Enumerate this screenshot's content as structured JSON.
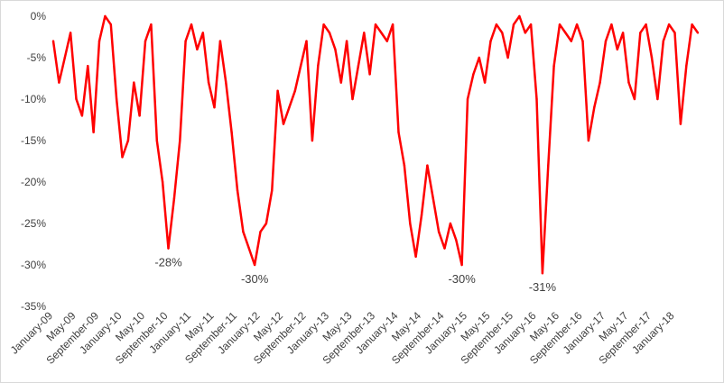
{
  "chart_data": {
    "type": "line",
    "title": "",
    "xlabel": "",
    "ylabel": "",
    "ylim": [
      -35,
      0
    ],
    "y_ticks": [
      "0%",
      "-5%",
      "-10%",
      "-15%",
      "-20%",
      "-25%",
      "-30%",
      "-35%"
    ],
    "x_tick_labels": [
      "January-09",
      "May-09",
      "September-09",
      "January-10",
      "May-10",
      "September-10",
      "January-11",
      "May-11",
      "September-11",
      "January-12",
      "May-12",
      "September-12",
      "January-13",
      "May-13",
      "September-13",
      "January-14",
      "May-14",
      "September-14",
      "January-15",
      "May-15",
      "September-15",
      "January-16",
      "May-16",
      "September-16",
      "January-17",
      "May-17",
      "September-17",
      "January-18"
    ],
    "grid": false,
    "legend": "none",
    "line_color": "#ff0000",
    "series": [
      {
        "x": [
          "2009-01",
          "2009-02",
          "2009-03",
          "2009-04",
          "2009-05",
          "2009-06",
          "2009-07",
          "2009-08",
          "2009-09",
          "2009-10",
          "2009-11",
          "2009-12",
          "2010-01",
          "2010-02",
          "2010-03",
          "2010-04",
          "2010-05",
          "2010-06",
          "2010-07",
          "2010-08",
          "2010-09",
          "2010-10",
          "2010-11",
          "2010-12",
          "2011-01",
          "2011-02",
          "2011-03",
          "2011-04",
          "2011-05",
          "2011-06",
          "2011-07",
          "2011-08",
          "2011-09",
          "2011-10",
          "2011-11",
          "2011-12",
          "2012-01",
          "2012-02",
          "2012-03",
          "2012-04",
          "2012-05",
          "2012-06",
          "2012-07",
          "2012-08",
          "2012-09",
          "2012-10",
          "2012-11",
          "2012-12",
          "2013-01",
          "2013-02",
          "2013-03",
          "2013-04",
          "2013-05",
          "2013-06",
          "2013-07",
          "2013-08",
          "2013-09",
          "2013-10",
          "2013-11",
          "2013-12",
          "2014-01",
          "2014-02",
          "2014-03",
          "2014-04",
          "2014-05",
          "2014-06",
          "2014-07",
          "2014-08",
          "2014-09",
          "2014-10",
          "2014-11",
          "2014-12",
          "2015-01",
          "2015-02",
          "2015-03",
          "2015-04",
          "2015-05",
          "2015-06",
          "2015-07",
          "2015-08",
          "2015-09",
          "2015-10",
          "2015-11",
          "2015-12",
          "2016-01",
          "2016-02",
          "2016-03",
          "2016-04",
          "2016-05",
          "2016-06",
          "2016-07",
          "2016-08",
          "2016-09",
          "2016-10",
          "2016-11",
          "2016-12",
          "2017-01",
          "2017-02",
          "2017-03",
          "2017-04",
          "2017-05",
          "2017-06",
          "2017-07",
          "2017-08",
          "2017-09",
          "2017-10",
          "2017-11",
          "2017-12",
          "2018-01",
          "2018-02",
          "2018-03",
          "2018-04",
          "2018-05"
        ],
        "values": [
          -3,
          -8,
          -5,
          -2,
          -10,
          -12,
          -6,
          -14,
          -3,
          0,
          -1,
          -10,
          -17,
          -15,
          -8,
          -12,
          -3,
          -1,
          -15,
          -20,
          -28,
          -22,
          -15,
          -3,
          -1,
          -4,
          -2,
          -8,
          -11,
          -3,
          -8,
          -14,
          -21,
          -26,
          -28,
          -30,
          -26,
          -25,
          -21,
          -9,
          -13,
          -11,
          -9,
          -6,
          -3,
          -15,
          -6,
          -1,
          -2,
          -4,
          -8,
          -3,
          -10,
          -6,
          -2,
          -7,
          -1,
          -2,
          -3,
          -1,
          -14,
          -18,
          -25,
          -29,
          -24,
          -18,
          -22,
          -26,
          -28,
          -25,
          -27,
          -30,
          -10,
          -7,
          -5,
          -8,
          -3,
          -1,
          -2,
          -5,
          -1,
          0,
          -2,
          -1,
          -10,
          -31,
          -18,
          -6,
          -1,
          -2,
          -3,
          -1,
          -3,
          -15,
          -11,
          -8,
          -3,
          -1,
          -4,
          -2,
          -8,
          -10,
          -2,
          -1,
          -5,
          -10,
          -3,
          -1,
          -2,
          -13,
          -6,
          -1,
          -2
        ]
      }
    ],
    "annotations": [
      {
        "text": "-28%",
        "x": "2010-09",
        "y": -28
      },
      {
        "text": "-30%",
        "x": "2011-12",
        "y": -30
      },
      {
        "text": "-30%",
        "x": "2014-12",
        "y": -30
      },
      {
        "text": "-31%",
        "x": "2016-02",
        "y": -31
      }
    ]
  }
}
